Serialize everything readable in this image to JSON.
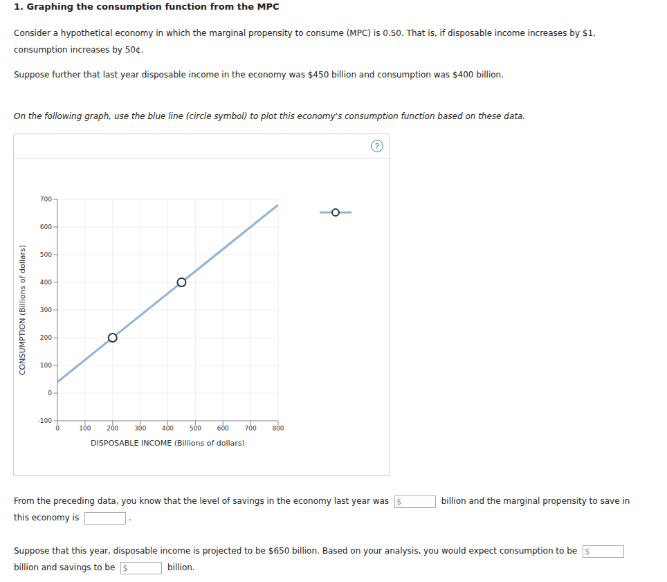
{
  "title": "1. Graphing the consumption function from the MPC",
  "paragraphs": [
    "Consider a hypothetical economy in which the marginal propensity to consume (MPC) is 0.50. That is, if disposable income increases by $1, consumption increases by 50¢.",
    "Suppose further that last year disposable income in the economy was $450 billion and consumption was $400 billion."
  ],
  "instruction": "On the following graph, use the blue line (circle symbol) to plot this economy's consumption function based on these data.",
  "help_icon": "?",
  "chart_data": {
    "type": "line",
    "x_label": "DISPOSABLE INCOME (Billions of dollars)",
    "y_label": "CONSUMPTION (Billions of dollars)",
    "xlim": [
      0,
      800
    ],
    "xticks": [
      0,
      100,
      200,
      300,
      400,
      500,
      600,
      700,
      800
    ],
    "ylim": [
      -100,
      700
    ],
    "yticks": [
      -100,
      0,
      100,
      200,
      300,
      400,
      500,
      600,
      700
    ],
    "grid": true,
    "legend": "upper right",
    "series": [
      {
        "type": "line",
        "color": "#8fb3d9",
        "marker": "none",
        "x": [
          0,
          800
        ],
        "values": [
          40,
          680
        ]
      },
      {
        "type": "scatter",
        "color": "#333333",
        "marker": "circle",
        "x": [
          200,
          450
        ],
        "values": [
          200,
          400
        ]
      }
    ]
  },
  "questions": [
    [
      {
        "text": "From the preceding data, you know that the level of savings in the economy last year was"
      },
      {
        "input": "$"
      },
      {
        "text": "billion and the marginal propensity to save in this economy is"
      },
      {
        "input": true
      },
      {
        "text": "."
      }
    ],
    [
      {
        "text": "Suppose that this year, disposable income is projected to be $650 billion. Based on your analysis, you would expect consumption to be"
      },
      {
        "input": "$"
      },
      {
        "text": "billion and savings to be"
      },
      {
        "input": "$"
      },
      {
        "text": "billion."
      }
    ]
  ]
}
